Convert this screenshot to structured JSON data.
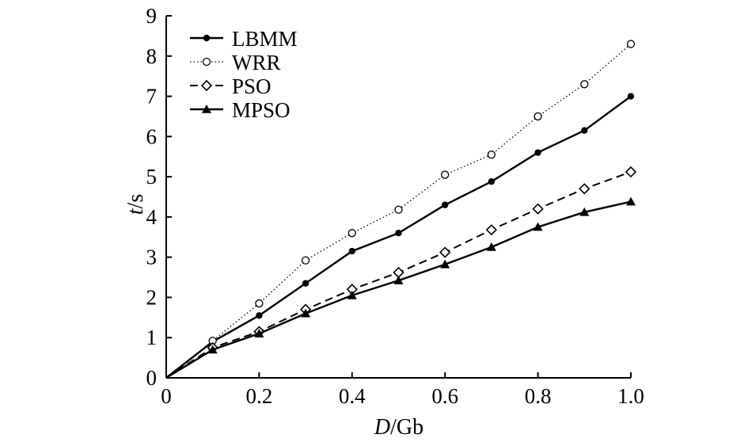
{
  "chart_data": {
    "type": "line",
    "title": "",
    "xlabel": {
      "var": "D",
      "unit": "/Gb"
    },
    "ylabel": {
      "var": "t",
      "unit": "/s"
    },
    "xlim": [
      0,
      1.0
    ],
    "ylim": [
      0,
      9
    ],
    "x_ticks": [
      {
        "value": 0,
        "label": "0"
      },
      {
        "value": 0.2,
        "label": "0.2"
      },
      {
        "value": 0.4,
        "label": "0.4"
      },
      {
        "value": 0.6,
        "label": "0.6"
      },
      {
        "value": 0.8,
        "label": "0.8"
      },
      {
        "value": 1.0,
        "label": "1.0"
      }
    ],
    "y_ticks": [
      {
        "value": 0,
        "label": "0"
      },
      {
        "value": 1,
        "label": "1"
      },
      {
        "value": 2,
        "label": "2"
      },
      {
        "value": 3,
        "label": "3"
      },
      {
        "value": 4,
        "label": "4"
      },
      {
        "value": 5,
        "label": "5"
      },
      {
        "value": 6,
        "label": "6"
      },
      {
        "value": 7,
        "label": "7"
      },
      {
        "value": 8,
        "label": "8"
      },
      {
        "value": 9,
        "label": "9"
      }
    ],
    "grid": false,
    "legend_position": "top-left",
    "x": [
      0,
      0.1,
      0.2,
      0.3,
      0.4,
      0.5,
      0.6,
      0.7,
      0.8,
      0.9,
      1.0
    ],
    "series": [
      {
        "name": "LBMM",
        "style": "solid",
        "marker": "filled-square",
        "color": "#000000",
        "values": [
          0,
          0.9,
          1.55,
          2.35,
          3.15,
          3.6,
          4.3,
          4.88,
          5.6,
          6.15,
          7.0
        ]
      },
      {
        "name": "WRR",
        "style": "dotted",
        "marker": "open-circle",
        "color": "#000000",
        "values": [
          0,
          0.92,
          1.85,
          2.92,
          3.6,
          4.18,
          5.05,
          5.55,
          6.5,
          7.3,
          8.3
        ]
      },
      {
        "name": "PSO",
        "style": "dashed",
        "marker": "open-diamond",
        "color": "#000000",
        "values": [
          0,
          0.75,
          1.15,
          1.7,
          2.2,
          2.62,
          3.12,
          3.68,
          4.2,
          4.7,
          5.12
        ]
      },
      {
        "name": "MPSO",
        "style": "solid",
        "marker": "filled-triangle",
        "color": "#000000",
        "values": [
          0,
          0.7,
          1.1,
          1.6,
          2.05,
          2.42,
          2.82,
          3.25,
          3.75,
          4.12,
          4.38
        ]
      }
    ]
  }
}
